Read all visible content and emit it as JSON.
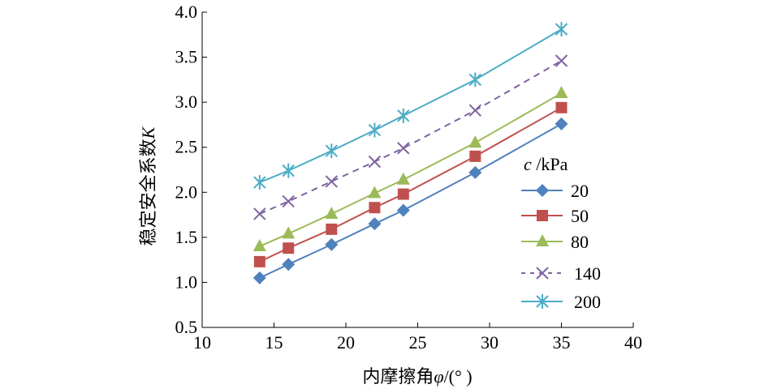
{
  "chart_data": {
    "type": "line",
    "title": "",
    "xlabel": "内摩擦角φ/(°)",
    "xlabel_main": "内摩擦角",
    "xlabel_symbol": "φ",
    "xlabel_unit": "/(° )",
    "ylabel": "稳定安全系数K",
    "ylabel_main": "稳定安全系数",
    "ylabel_symbol": "K",
    "xlim": [
      10,
      40
    ],
    "ylim": [
      0.5,
      4.0
    ],
    "xticks": [
      "10",
      "15",
      "20",
      "25",
      "30",
      "35",
      "40"
    ],
    "yticks": [
      "0.5",
      "1.0",
      "1.5",
      "2.0",
      "2.5",
      "3.0",
      "3.5",
      "4.0"
    ],
    "grid": false,
    "legend_title_symbol": "c",
    "legend_title_unit": " /kPa",
    "legend_placement": "right",
    "x": [
      14,
      16,
      19,
      22,
      24,
      29,
      35
    ],
    "series": [
      {
        "name": "20",
        "marker": "diamond",
        "dash": false,
        "color": "#4F81BD",
        "values": [
          1.05,
          1.2,
          1.42,
          1.65,
          1.8,
          2.22,
          2.76
        ]
      },
      {
        "name": "50",
        "marker": "square",
        "dash": false,
        "color": "#C0504D",
        "values": [
          1.23,
          1.38,
          1.59,
          1.83,
          1.98,
          2.4,
          2.94
        ]
      },
      {
        "name": "80",
        "marker": "triangle",
        "dash": false,
        "color": "#9BBB59",
        "values": [
          1.4,
          1.54,
          1.76,
          1.99,
          2.14,
          2.55,
          3.1
        ]
      },
      {
        "name": "140",
        "marker": "x",
        "dash": true,
        "color": "#8064A2",
        "values": [
          1.76,
          1.9,
          2.12,
          2.34,
          2.49,
          2.91,
          3.46
        ]
      },
      {
        "name": "200",
        "marker": "asterisk",
        "dash": false,
        "color": "#4BACC6",
        "values": [
          2.11,
          2.24,
          2.46,
          2.69,
          2.85,
          3.25,
          3.81
        ]
      }
    ]
  }
}
